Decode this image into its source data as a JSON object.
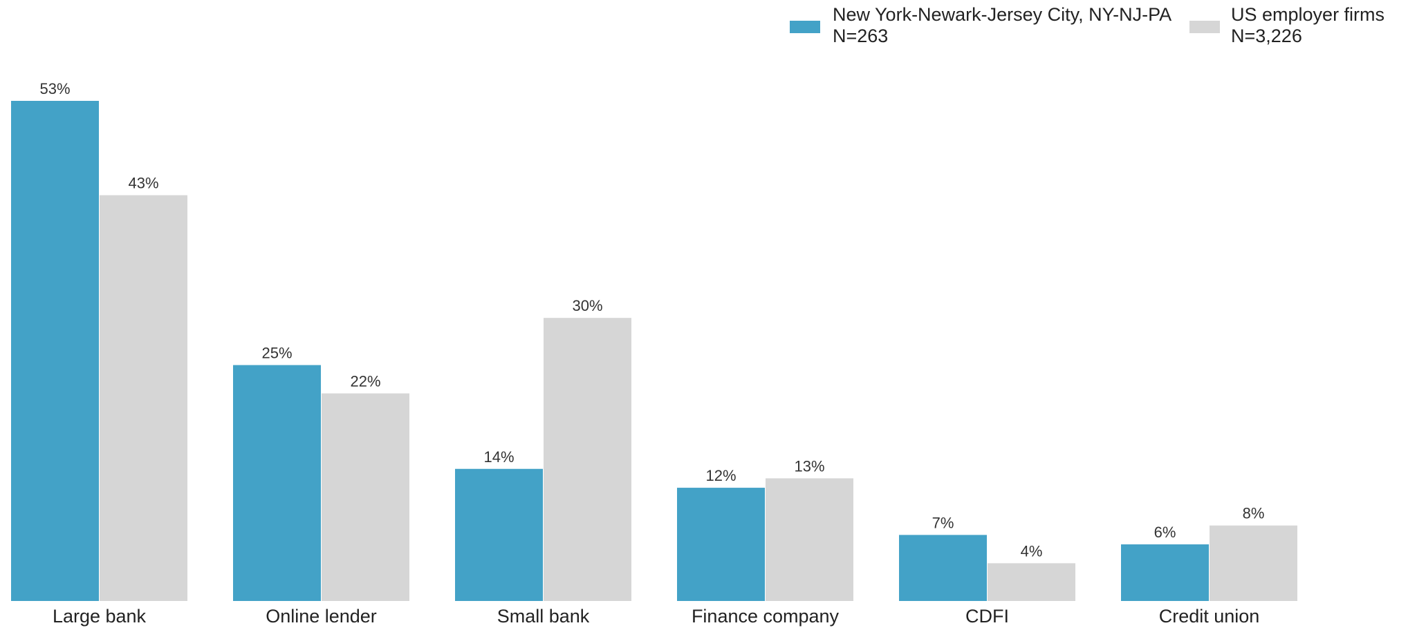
{
  "chart_data": {
    "type": "bar",
    "categories": [
      "Large bank",
      "Online lender",
      "Small bank",
      "Finance company",
      "CDFI",
      "Credit union"
    ],
    "series": [
      {
        "name": "New York-Newark-Jersey City, NY-NJ-PA",
        "sample": "N=263",
        "color": "#43a2c7",
        "values": [
          53,
          25,
          14,
          12,
          7,
          6
        ],
        "labels": [
          "53%",
          "25%",
          "14%",
          "12%",
          "7%",
          "6%"
        ]
      },
      {
        "name": "US employer firms",
        "sample": "N=3,226",
        "color": "#d6d6d6",
        "values": [
          43,
          22,
          30,
          13,
          4,
          8
        ],
        "labels": [
          "43%",
          "22%",
          "30%",
          "13%",
          "4%",
          "8%"
        ]
      }
    ],
    "unit": "%",
    "ylim": [
      0,
      53
    ],
    "grid": false,
    "legend_position": "top-right",
    "title": "",
    "xlabel": "",
    "ylabel": ""
  }
}
